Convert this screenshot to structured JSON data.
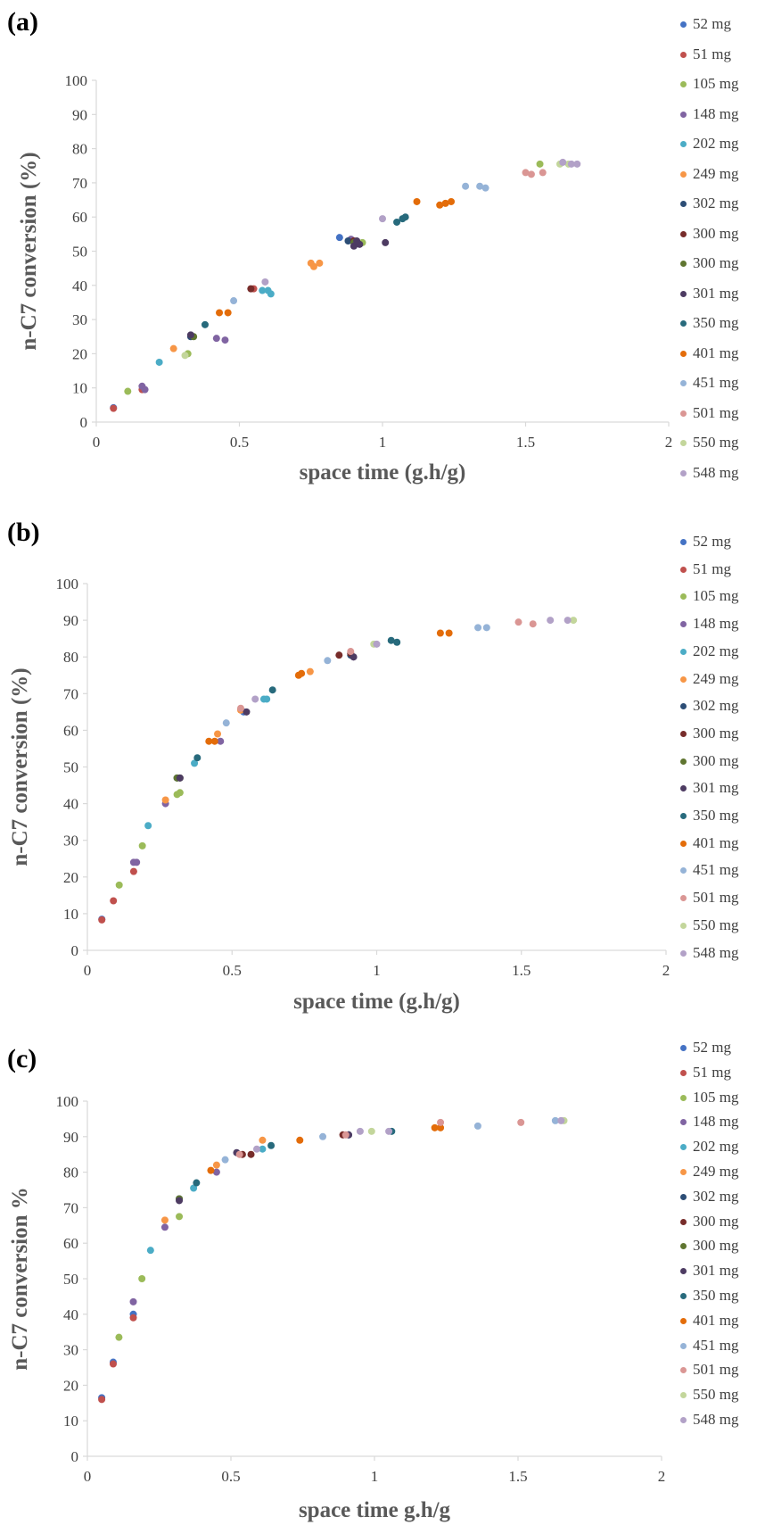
{
  "colors": {
    "52 mg": "#4472c4",
    "51 mg": "#c0504d",
    "105 mg": "#9bbb59",
    "148 mg": "#8064a2",
    "202 mg": "#4bacc6",
    "249 mg": "#f79646",
    "302 mg": "#2c4d75",
    "300 mg a": "#772c2a",
    "300 mg b": "#5f7530",
    "301 mg": "#4d3b62",
    "350 mg": "#276a7c",
    "401 mg": "#e36c09",
    "451 mg": "#95b3d7",
    "501 mg": "#da9694",
    "550 mg": "#c3d69b",
    "548 mg": "#b2a1c7"
  },
  "legend_labels": [
    "52 mg",
    "51 mg",
    "105 mg",
    "148 mg",
    "202 mg",
    "249 mg",
    "302 mg",
    "300 mg",
    "300 mg",
    "301 mg",
    "350 mg",
    "401 mg",
    "451 mg",
    "501 mg",
    "550 mg",
    "548 mg"
  ],
  "chart_data": [
    {
      "panel_label": "(a)",
      "type": "scatter",
      "xlabel": "space time (g.h/g)",
      "ylabel": "n-C7 conversion (%)",
      "xlim": [
        0,
        2
      ],
      "ylim": [
        0,
        100
      ],
      "xticks": [
        "0",
        "0.5",
        "1",
        "1.5",
        "2"
      ],
      "yticks": [
        "0",
        "10",
        "20",
        "30",
        "40",
        "50",
        "60",
        "70",
        "80",
        "90",
        "100"
      ],
      "legend": "right",
      "series": [
        {
          "name": "52 mg",
          "points": [
            [
              0.06,
              4.2
            ],
            [
              0.85,
              54
            ]
          ]
        },
        {
          "name": "51 mg",
          "points": [
            [
              0.06,
              4.0
            ],
            [
              0.16,
              9.5
            ],
            [
              0.55,
              39
            ]
          ]
        },
        {
          "name": "105 mg",
          "points": [
            [
              0.11,
              9
            ],
            [
              0.32,
              20
            ],
            [
              0.93,
              52.5
            ],
            [
              1.55,
              75.5
            ]
          ]
        },
        {
          "name": "148 mg",
          "points": [
            [
              0.16,
              10.5
            ],
            [
              0.17,
              9.5
            ],
            [
              0.45,
              24
            ],
            [
              0.42,
              24.5
            ],
            [
              0.89,
              53.5
            ]
          ]
        },
        {
          "name": "202 mg",
          "points": [
            [
              0.22,
              17.5
            ],
            [
              0.58,
              38.5
            ],
            [
              0.61,
              37.5
            ],
            [
              0.6,
              38.5
            ]
          ]
        },
        {
          "name": "249 mg",
          "points": [
            [
              0.27,
              21.5
            ],
            [
              0.75,
              46.5
            ],
            [
              0.76,
              45.5
            ],
            [
              0.78,
              46.5
            ]
          ]
        },
        {
          "name": "302 mg",
          "points": [
            [
              0.33,
              25
            ],
            [
              0.88,
              53
            ]
          ]
        },
        {
          "name": "300 mg",
          "points": [
            [
              0.54,
              39
            ],
            [
              0.9,
              53
            ]
          ]
        },
        {
          "name": "300 mg",
          "points": [
            [
              0.34,
              25
            ],
            [
              0.9,
              52.5
            ]
          ]
        },
        {
          "name": "301 mg",
          "points": [
            [
              0.33,
              25.5
            ],
            [
              0.9,
              51.5
            ],
            [
              0.92,
              52
            ],
            [
              1.01,
              52.5
            ],
            [
              0.91,
              53
            ]
          ]
        },
        {
          "name": "350 mg",
          "points": [
            [
              0.38,
              28.5
            ],
            [
              1.05,
              58.5
            ],
            [
              1.07,
              59.5
            ],
            [
              1.08,
              60
            ]
          ]
        },
        {
          "name": "401 mg",
          "points": [
            [
              0.43,
              32
            ],
            [
              0.46,
              32
            ],
            [
              1.12,
              64.5
            ],
            [
              1.2,
              63.5
            ],
            [
              1.22,
              64
            ],
            [
              1.24,
              64.5
            ]
          ]
        },
        {
          "name": "451 mg",
          "points": [
            [
              0.48,
              35.5
            ],
            [
              1.29,
              69
            ],
            [
              1.34,
              69
            ],
            [
              1.36,
              68.5
            ]
          ]
        },
        {
          "name": "501 mg",
          "points": [
            [
              1.5,
              73
            ],
            [
              1.52,
              72.5
            ],
            [
              1.56,
              73
            ]
          ]
        },
        {
          "name": "550 mg",
          "points": [
            [
              0.31,
              19.5
            ],
            [
              1.62,
              75.5
            ],
            [
              1.65,
              75.5
            ]
          ]
        },
        {
          "name": "548 mg",
          "points": [
            [
              0.59,
              41
            ],
            [
              1.0,
              59.5
            ],
            [
              1.63,
              76
            ],
            [
              1.66,
              75.5
            ],
            [
              1.68,
              75.5
            ]
          ]
        }
      ]
    },
    {
      "panel_label": "(b)",
      "type": "scatter",
      "xlabel": "space time (g.h/g)",
      "ylabel": "n-C7 conversion  (%)",
      "xlim": [
        0,
        2
      ],
      "ylim": [
        0,
        100
      ],
      "xticks": [
        "0",
        "0.5",
        "1",
        "1.5",
        "2"
      ],
      "yticks": [
        "0",
        "10",
        "20",
        "30",
        "40",
        "50",
        "60",
        "70",
        "80",
        "90",
        "100"
      ],
      "legend": "right",
      "series": [
        {
          "name": "52 mg",
          "points": [
            [
              0.05,
              8.5
            ],
            [
              0.54,
              65
            ]
          ]
        },
        {
          "name": "51 mg",
          "points": [
            [
              0.05,
              8.3
            ],
            [
              0.09,
              13.5
            ],
            [
              0.16,
              21.5
            ]
          ]
        },
        {
          "name": "105 mg",
          "points": [
            [
              0.11,
              17.8
            ],
            [
              0.19,
              28.5
            ],
            [
              0.31,
              42.5
            ],
            [
              0.32,
              43
            ]
          ]
        },
        {
          "name": "148 mg",
          "points": [
            [
              0.16,
              24
            ],
            [
              0.17,
              24
            ],
            [
              0.27,
              40
            ],
            [
              0.46,
              57
            ],
            [
              0.92,
              80
            ]
          ]
        },
        {
          "name": "202 mg",
          "points": [
            [
              0.21,
              34
            ],
            [
              0.37,
              51
            ],
            [
              0.61,
              68.5
            ],
            [
              0.62,
              68.5
            ]
          ]
        },
        {
          "name": "249 mg",
          "points": [
            [
              0.27,
              41
            ],
            [
              0.45,
              59
            ],
            [
              0.53,
              65.5
            ],
            [
              0.77,
              76
            ]
          ]
        },
        {
          "name": "302 mg",
          "points": [
            [
              0.31,
              47
            ],
            [
              0.91,
              80.5
            ]
          ]
        },
        {
          "name": "300 mg",
          "points": [
            [
              0.87,
              80.5
            ],
            [
              0.91,
              81
            ]
          ]
        },
        {
          "name": "300 mg",
          "points": [
            [
              0.31,
              47
            ],
            [
              0.32,
              47
            ]
          ]
        },
        {
          "name": "301 mg",
          "points": [
            [
              0.32,
              47
            ],
            [
              0.55,
              65
            ],
            [
              0.92,
              80
            ]
          ]
        },
        {
          "name": "350 mg",
          "points": [
            [
              0.38,
              52.5
            ],
            [
              0.64,
              71
            ],
            [
              1.05,
              84.5
            ],
            [
              1.07,
              84
            ]
          ]
        },
        {
          "name": "401 mg",
          "points": [
            [
              0.42,
              57
            ],
            [
              0.44,
              57
            ],
            [
              0.73,
              75
            ],
            [
              0.74,
              75.5
            ],
            [
              1.22,
              86.5
            ],
            [
              1.25,
              86.5
            ]
          ]
        },
        {
          "name": "451 mg",
          "points": [
            [
              0.48,
              62
            ],
            [
              0.83,
              79
            ],
            [
              1.35,
              88
            ],
            [
              1.38,
              88
            ]
          ]
        },
        {
          "name": "501 mg",
          "points": [
            [
              0.53,
              66
            ],
            [
              0.91,
              81.5
            ],
            [
              1.49,
              89.5
            ],
            [
              1.54,
              89
            ]
          ]
        },
        {
          "name": "550 mg",
          "points": [
            [
              0.99,
              83.5
            ],
            [
              1.68,
              90
            ]
          ]
        },
        {
          "name": "548 mg",
          "points": [
            [
              0.58,
              68.5
            ],
            [
              1.0,
              83.5
            ],
            [
              1.6,
              90
            ],
            [
              1.66,
              90
            ]
          ]
        }
      ]
    },
    {
      "panel_label": "(c)",
      "type": "scatter",
      "xlabel": "space time g.h/g",
      "ylabel": "n-C7 conversion %",
      "xlim": [
        0,
        2
      ],
      "ylim": [
        0,
        100
      ],
      "xticks": [
        "0",
        "0.5",
        "1",
        "1.5",
        "2"
      ],
      "yticks": [
        "0",
        "10",
        "20",
        "30",
        "40",
        "50",
        "60",
        "70",
        "80",
        "90",
        "100"
      ],
      "legend": "right",
      "series": [
        {
          "name": "52 mg",
          "points": [
            [
              0.05,
              16.5
            ],
            [
              0.09,
              26.5
            ],
            [
              0.16,
              40
            ]
          ]
        },
        {
          "name": "51 mg",
          "points": [
            [
              0.05,
              16
            ],
            [
              0.09,
              26
            ],
            [
              0.16,
              39
            ]
          ]
        },
        {
          "name": "105 mg",
          "points": [
            [
              0.11,
              33.5
            ],
            [
              0.19,
              50
            ],
            [
              0.32,
              67.5
            ]
          ]
        },
        {
          "name": "148 mg",
          "points": [
            [
              0.16,
              43.5
            ],
            [
              0.27,
              64.5
            ],
            [
              0.45,
              80
            ]
          ]
        },
        {
          "name": "202 mg",
          "points": [
            [
              0.22,
              58
            ],
            [
              0.37,
              75.5
            ],
            [
              0.61,
              86.5
            ]
          ]
        },
        {
          "name": "249 mg",
          "points": [
            [
              0.27,
              66.5
            ],
            [
              0.45,
              82
            ],
            [
              0.61,
              89
            ]
          ]
        },
        {
          "name": "302 mg",
          "points": [
            [
              0.32,
              72.5
            ],
            [
              0.91,
              90.5
            ]
          ]
        },
        {
          "name": "300 mg",
          "points": [
            [
              0.54,
              85
            ],
            [
              0.57,
              85
            ],
            [
              0.89,
              90.5
            ]
          ]
        },
        {
          "name": "300 mg",
          "points": [
            [
              0.32,
              72.5
            ]
          ]
        },
        {
          "name": "301 mg",
          "points": [
            [
              0.32,
              72
            ],
            [
              0.52,
              85.5
            ],
            [
              0.91,
              90.5
            ]
          ]
        },
        {
          "name": "350 mg",
          "points": [
            [
              0.38,
              77
            ],
            [
              0.64,
              87.5
            ],
            [
              1.06,
              91.5
            ]
          ]
        },
        {
          "name": "401 mg",
          "points": [
            [
              0.43,
              80.5
            ],
            [
              0.74,
              89
            ],
            [
              1.21,
              92.5
            ],
            [
              1.23,
              92.5
            ]
          ]
        },
        {
          "name": "451 mg",
          "points": [
            [
              0.48,
              83.5
            ],
            [
              0.82,
              90
            ],
            [
              1.36,
              93
            ],
            [
              1.63,
              94.5
            ]
          ]
        },
        {
          "name": "501 mg",
          "points": [
            [
              0.53,
              85
            ],
            [
              0.9,
              90.5
            ],
            [
              1.23,
              94
            ],
            [
              1.51,
              94
            ]
          ]
        },
        {
          "name": "550 mg",
          "points": [
            [
              0.99,
              91.5
            ],
            [
              1.66,
              94.5
            ]
          ]
        },
        {
          "name": "548 mg",
          "points": [
            [
              0.59,
              86.5
            ],
            [
              0.95,
              91.5
            ],
            [
              1.05,
              91.5
            ],
            [
              1.65,
              94.5
            ]
          ]
        }
      ]
    }
  ]
}
